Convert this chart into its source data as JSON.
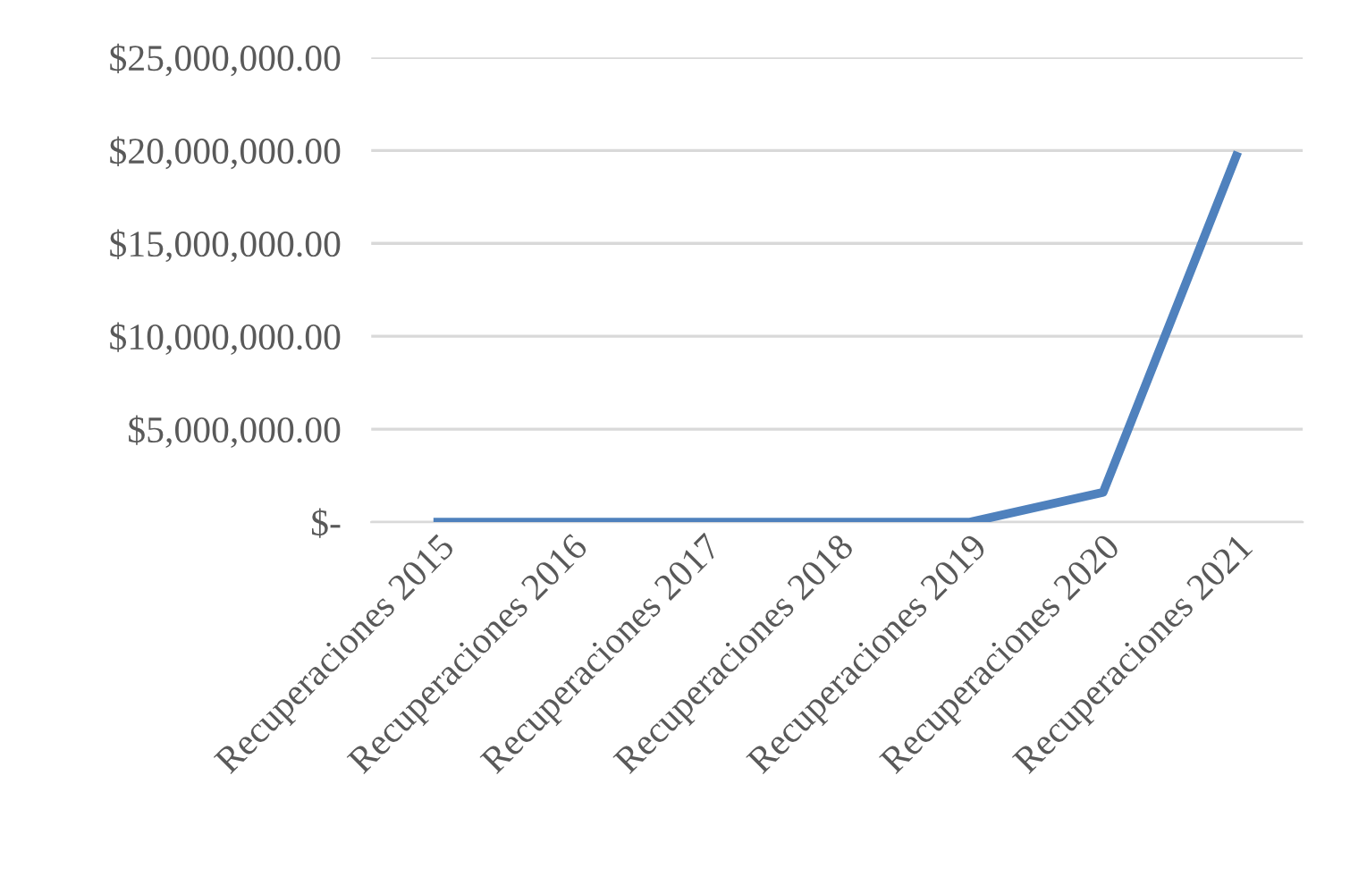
{
  "chart_data": {
    "type": "line",
    "categories": [
      "Recuperaciones 2015",
      "Recuperaciones 2016",
      "Recuperaciones 2017",
      "Recuperaciones 2018",
      "Recuperaciones 2019",
      "Recuperaciones 2020",
      "Recuperaciones 2021"
    ],
    "series": [
      {
        "color": "#4f81bd",
        "values": [
          0,
          0,
          0,
          0,
          0,
          1600000,
          19700000
        ]
      }
    ],
    "ylim": [
      0,
      25000000
    ],
    "yticks": [
      {
        "value": 0,
        "label": "$-"
      },
      {
        "value": 5000000,
        "label": "$5,000,000.00"
      },
      {
        "value": 10000000,
        "label": "$10,000,000.00"
      },
      {
        "value": 15000000,
        "label": "$15,000,000.00"
      },
      {
        "value": 20000000,
        "label": "$20,000,000.00"
      },
      {
        "value": 25000000,
        "label": "$25,000,000.00"
      }
    ],
    "grid": "y",
    "legend": false,
    "marker": "none",
    "line_style": "solid"
  }
}
